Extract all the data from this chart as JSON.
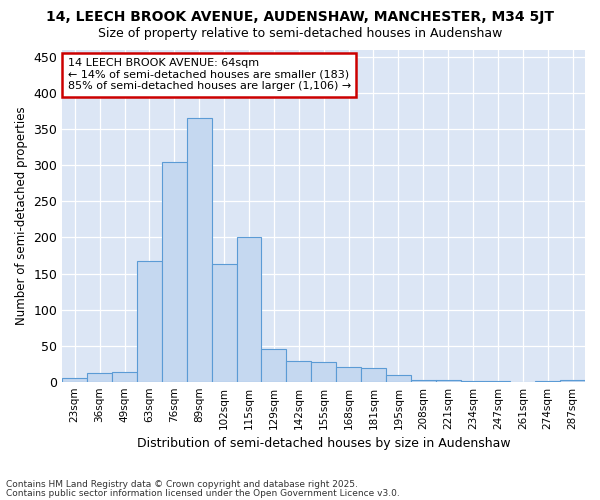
{
  "title": "14, LEECH BROOK AVENUE, AUDENSHAW, MANCHESTER, M34 5JT",
  "subtitle": "Size of property relative to semi-detached houses in Audenshaw",
  "xlabel": "Distribution of semi-detached houses by size in Audenshaw",
  "ylabel": "Number of semi-detached properties",
  "categories": [
    "23sqm",
    "36sqm",
    "49sqm",
    "63sqm",
    "76sqm",
    "89sqm",
    "102sqm",
    "115sqm",
    "129sqm",
    "142sqm",
    "155sqm",
    "168sqm",
    "181sqm",
    "195sqm",
    "208sqm",
    "221sqm",
    "234sqm",
    "247sqm",
    "261sqm",
    "274sqm",
    "287sqm"
  ],
  "values": [
    5,
    12,
    14,
    167,
    305,
    365,
    163,
    200,
    46,
    28,
    27,
    20,
    19,
    9,
    3,
    2,
    1,
    1,
    0,
    1,
    2
  ],
  "bar_color": "#c5d8f0",
  "bar_edge_color": "#5b9bd5",
  "annotation_text": "14 LEECH BROOK AVENUE: 64sqm\n← 14% of semi-detached houses are smaller (183)\n85% of semi-detached houses are larger (1,106) →",
  "annotation_box_color": "#ffffff",
  "annotation_box_edge": "#cc0000",
  "ylim": [
    0,
    460
  ],
  "yticks": [
    0,
    50,
    100,
    150,
    200,
    250,
    300,
    350,
    400,
    450
  ],
  "plot_bg_color": "#dce6f5",
  "fig_bg_color": "#ffffff",
  "grid_color": "#ffffff",
  "footnote1": "Contains HM Land Registry data © Crown copyright and database right 2025.",
  "footnote2": "Contains public sector information licensed under the Open Government Licence v3.0."
}
